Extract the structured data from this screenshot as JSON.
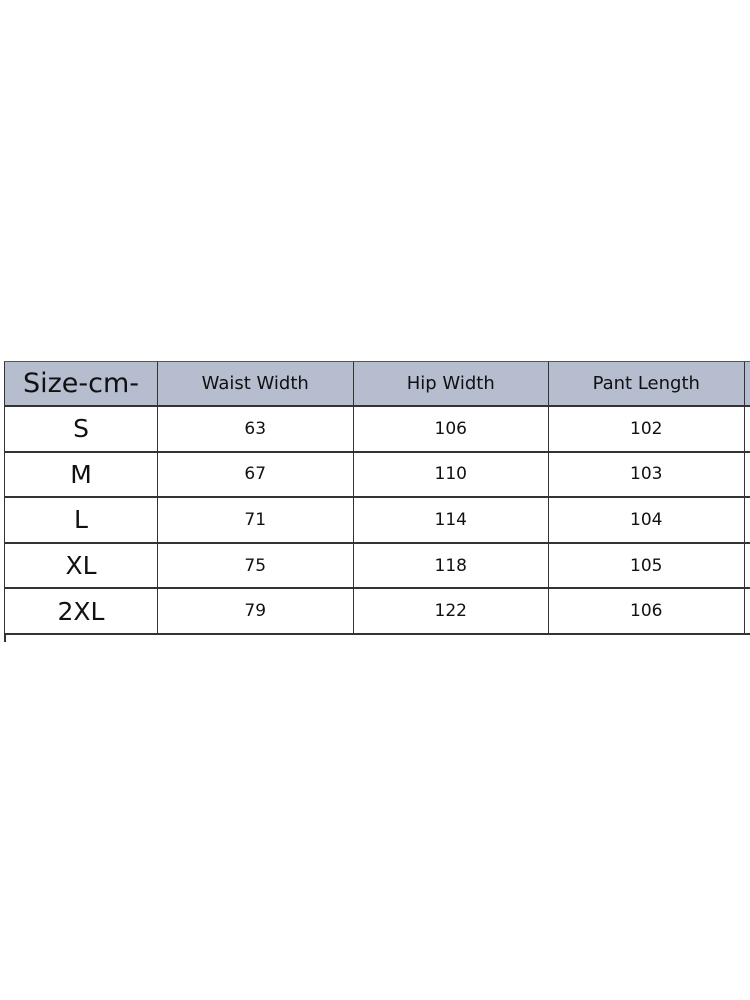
{
  "table": {
    "headers": [
      "Size-cm-",
      "Waist Width",
      "Hip Width",
      "Pant Length"
    ],
    "rows": [
      [
        "S",
        "63",
        "106",
        "102"
      ],
      [
        "M",
        "67",
        "110",
        "103"
      ],
      [
        "L",
        "71",
        "114",
        "104"
      ],
      [
        "XL",
        "75",
        "118",
        "105"
      ],
      [
        "2XL",
        "79",
        "122",
        "106"
      ]
    ],
    "header_color": "#b5bdcf"
  }
}
